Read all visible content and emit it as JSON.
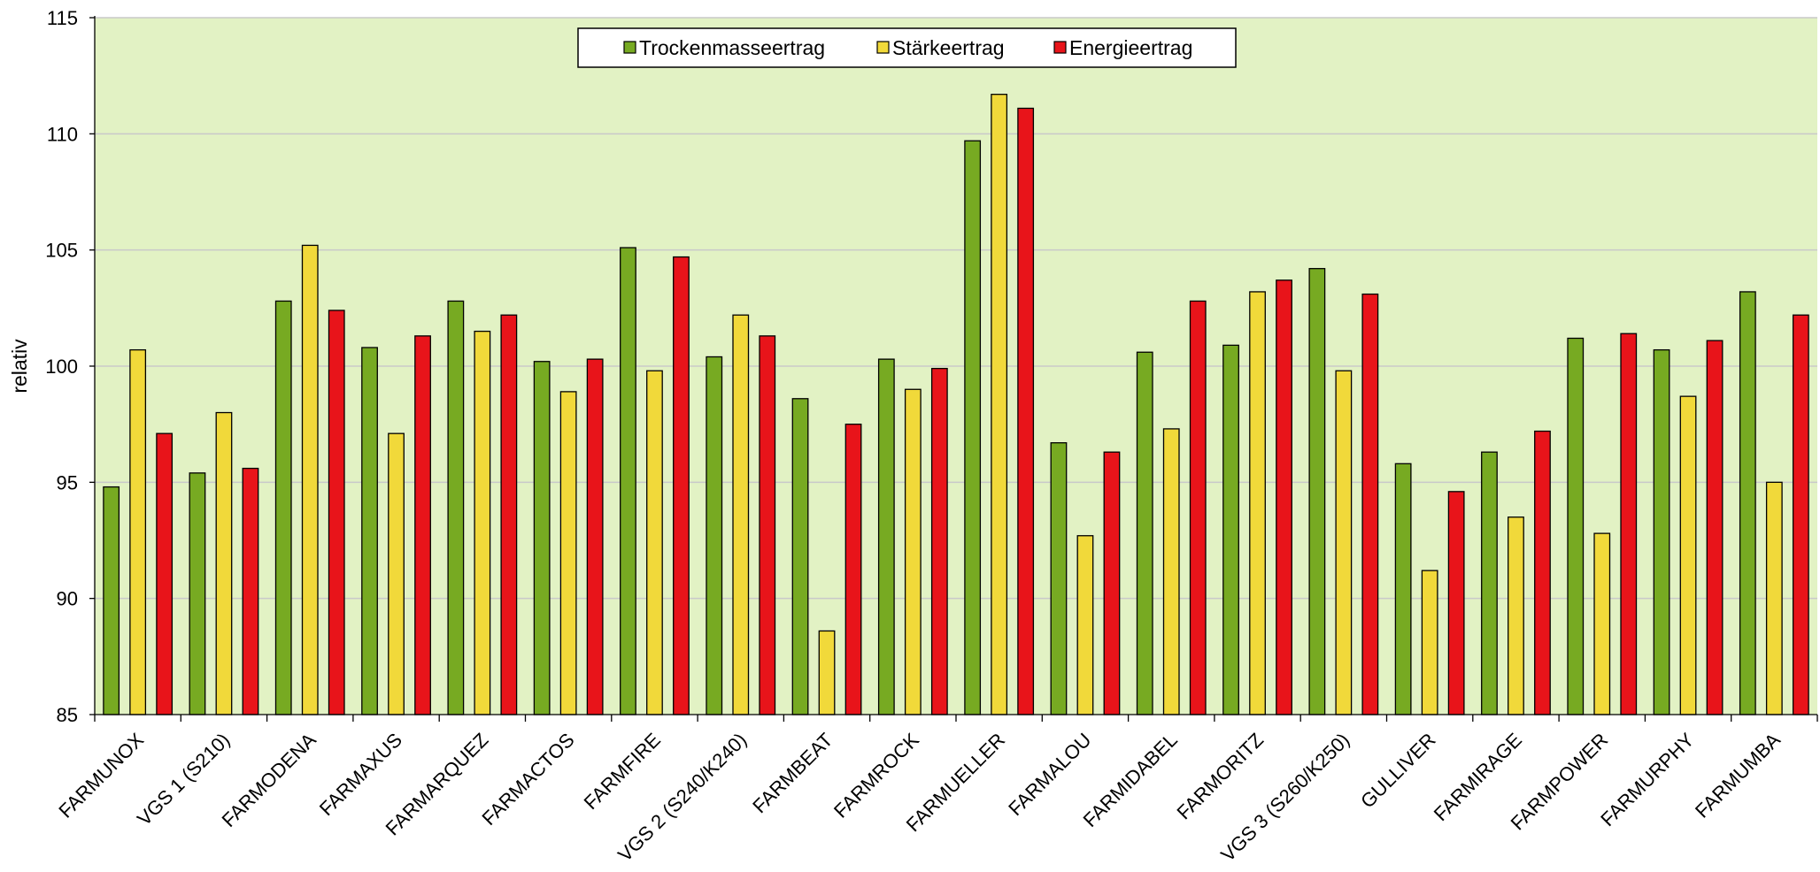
{
  "chart_data": {
    "type": "bar",
    "ylabel": "relativ",
    "ylim": [
      85,
      115
    ],
    "yticks": [
      85,
      90,
      95,
      100,
      105,
      110,
      115
    ],
    "grid": true,
    "legend_position": "top-center",
    "plot_background": "#e2f2c4",
    "categories": [
      "FARMUNOX",
      "VGS 1 (S210)",
      "FARMODENA",
      "FARMAXUS",
      "FARMARQUEZ",
      "FARMACTOS",
      "FARMFIRE",
      "VGS 2 (S240/K240)",
      "FARMBEAT",
      "FARMROCK",
      "FARMUELLER",
      "FARMALOU",
      "FARMIDABEL",
      "FARMORITZ",
      "VGS 3 (S260/K250)",
      "GULLIVER",
      "FARMIRAGE",
      "FARMPOWER",
      "FARMURPHY",
      "FARMUMBA"
    ],
    "series": [
      {
        "name": "Trockenmasseertrag",
        "color": "#77aa22",
        "values": [
          94.8,
          95.4,
          102.8,
          100.8,
          102.8,
          100.2,
          105.1,
          100.4,
          98.6,
          100.3,
          109.7,
          96.7,
          100.6,
          100.9,
          104.2,
          95.8,
          96.3,
          101.2,
          100.7,
          103.2
        ]
      },
      {
        "name": "Stärkeertrag",
        "color": "#f1d93a",
        "values": [
          100.7,
          98.0,
          105.2,
          97.1,
          101.5,
          98.9,
          99.8,
          102.2,
          88.6,
          99.0,
          111.7,
          92.7,
          97.3,
          103.2,
          99.8,
          91.2,
          93.5,
          92.8,
          98.7,
          95.0
        ]
      },
      {
        "name": "Energieertrag",
        "color": "#e8141a",
        "values": [
          97.1,
          95.6,
          102.4,
          101.3,
          102.2,
          100.3,
          104.7,
          101.3,
          97.5,
          99.9,
          111.1,
          96.3,
          102.8,
          103.7,
          103.1,
          94.6,
          97.2,
          101.4,
          101.1,
          102.2
        ]
      }
    ]
  }
}
